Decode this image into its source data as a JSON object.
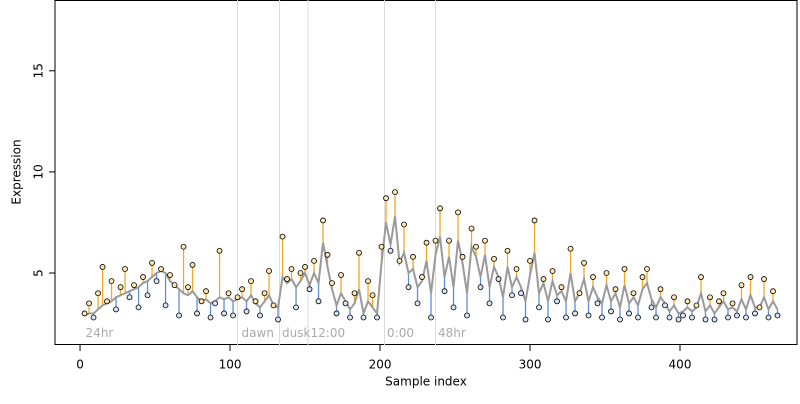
{
  "chart_data": {
    "type": "residual-scatter",
    "xlabel": "Sample index",
    "ylabel": "Expression",
    "xlim": [
      -16.7,
      478
    ],
    "ylim": [
      1.44,
      18.5
    ],
    "xticks": [
      0,
      100,
      200,
      300,
      400
    ],
    "yticks": [
      5,
      10,
      15
    ],
    "above_color": "#f5a623",
    "below_color": "#5b8fd9",
    "fit_color": "#9a9a9a",
    "point_above_fill": "#ffe6b0",
    "point_below_fill": "#d8e6f7",
    "vlines": [
      105,
      133,
      152,
      203,
      237
    ],
    "annotations": [
      {
        "text": "24hr",
        "x": 3,
        "y": 2
      },
      {
        "text": "dawn",
        "x": 107,
        "y": 2
      },
      {
        "text": "dusk",
        "x": 134,
        "y": 2
      },
      {
        "text": "12:00",
        "x": 153,
        "y": 2
      },
      {
        "text": "0:00",
        "x": 204,
        "y": 2
      },
      {
        "text": "48hr",
        "x": 238,
        "y": 2
      }
    ],
    "x": [
      3,
      6,
      9,
      12,
      15,
      18,
      21,
      24,
      27,
      30,
      33,
      36,
      39,
      42,
      45,
      48,
      51,
      54,
      57,
      60,
      63,
      66,
      69,
      72,
      75,
      78,
      81,
      84,
      87,
      90,
      93,
      96,
      99,
      102,
      105,
      108,
      111,
      114,
      117,
      120,
      123,
      126,
      129,
      132,
      135,
      138,
      141,
      144,
      147,
      150,
      153,
      156,
      159,
      162,
      165,
      168,
      171,
      174,
      177,
      180,
      183,
      186,
      189,
      192,
      195,
      198,
      201,
      204,
      207,
      210,
      213,
      216,
      219,
      222,
      225,
      228,
      231,
      234,
      237,
      240,
      243,
      246,
      249,
      252,
      255,
      258,
      261,
      264,
      267,
      270,
      273,
      276,
      279,
      282,
      285,
      288,
      291,
      294,
      297,
      300,
      303,
      306,
      309,
      312,
      315,
      318,
      321,
      324,
      327,
      330,
      333,
      336,
      339,
      342,
      345,
      348,
      351,
      354,
      357,
      360,
      363,
      366,
      369,
      372,
      375,
      378,
      381,
      384,
      387,
      390,
      393,
      396,
      399,
      402,
      405,
      408,
      411,
      414,
      417,
      420,
      423,
      426,
      429,
      432,
      435,
      438,
      441,
      444,
      447,
      450,
      453,
      456,
      459,
      462,
      465
    ],
    "values": [
      3.0,
      3.5,
      2.8,
      4.0,
      5.3,
      3.6,
      4.6,
      3.2,
      4.3,
      5.2,
      3.8,
      4.4,
      3.3,
      4.8,
      3.9,
      5.5,
      4.6,
      5.2,
      3.4,
      4.9,
      4.4,
      2.9,
      6.3,
      4.3,
      5.4,
      3.0,
      3.6,
      4.1,
      2.8,
      3.5,
      6.1,
      3.0,
      4.0,
      2.9,
      3.8,
      4.2,
      3.1,
      4.6,
      3.6,
      2.9,
      4.0,
      5.1,
      3.4,
      2.7,
      6.8,
      4.7,
      5.2,
      3.3,
      5.0,
      5.3,
      4.2,
      5.6,
      3.6,
      7.6,
      5.9,
      4.5,
      3.0,
      4.9,
      3.5,
      2.8,
      4.0,
      6.0,
      2.8,
      4.6,
      3.9,
      2.8,
      6.3,
      8.7,
      6.1,
      9.0,
      5.6,
      7.4,
      4.3,
      5.8,
      3.5,
      4.8,
      6.5,
      2.8,
      6.6,
      8.2,
      4.1,
      6.6,
      3.3,
      8.0,
      5.8,
      2.9,
      7.2,
      6.3,
      4.3,
      6.6,
      3.5,
      5.7,
      4.7,
      2.8,
      6.1,
      3.9,
      5.2,
      4.0,
      2.7,
      5.6,
      7.6,
      3.3,
      4.7,
      2.7,
      5.1,
      3.6,
      4.3,
      2.8,
      6.2,
      3.0,
      4.0,
      5.5,
      2.9,
      4.8,
      3.5,
      2.8,
      5.0,
      3.1,
      4.2,
      2.7,
      5.2,
      3.0,
      4.0,
      2.8,
      4.8,
      5.2,
      3.3,
      2.8,
      4.2,
      3.4,
      2.8,
      3.8,
      2.7,
      2.9,
      3.6,
      2.8,
      3.4,
      4.8,
      2.7,
      3.8,
      2.7,
      3.6,
      4.0,
      2.8,
      3.5,
      2.9,
      4.4,
      2.8,
      4.8,
      3.0,
      3.3,
      4.7,
      2.8,
      4.1,
      2.9
    ],
    "fitted": [
      2.9,
      3.0,
      3.0,
      3.2,
      3.4,
      3.5,
      3.6,
      3.8,
      3.9,
      4.0,
      4.1,
      4.2,
      4.3,
      4.5,
      4.6,
      4.8,
      5.0,
      5.1,
      5.0,
      4.6,
      4.4,
      4.2,
      4.0,
      3.9,
      4.1,
      3.8,
      3.6,
      3.7,
      3.5,
      3.6,
      3.8,
      3.7,
      3.8,
      3.6,
      3.7,
      3.8,
      3.6,
      3.9,
      3.5,
      3.3,
      3.6,
      3.9,
      3.4,
      3.3,
      4.8,
      4.5,
      4.7,
      4.3,
      4.6,
      5.0,
      4.4,
      5.0,
      4.5,
      6.5,
      5.3,
      4.2,
      3.4,
      4.0,
      3.6,
      3.2,
      3.5,
      4.2,
      3.0,
      3.6,
      3.3,
      3.0,
      5.5,
      7.5,
      6.4,
      7.8,
      5.5,
      6.0,
      5.0,
      5.2,
      4.3,
      4.6,
      5.6,
      4.0,
      5.9,
      6.8,
      4.8,
      5.8,
      4.3,
      6.6,
      5.5,
      4.0,
      6.3,
      5.8,
      4.8,
      5.9,
      4.3,
      5.3,
      4.8,
      3.8,
      5.3,
      4.3,
      4.8,
      4.3,
      3.6,
      4.9,
      6.0,
      4.0,
      4.5,
      3.6,
      4.6,
      3.9,
      4.1,
      3.6,
      5.0,
      3.6,
      4.0,
      4.7,
      3.6,
      4.3,
      3.8,
      3.5,
      4.4,
      3.6,
      4.0,
      3.3,
      4.4,
      3.5,
      3.8,
      3.4,
      4.2,
      4.5,
      3.7,
      3.3,
      3.8,
      3.5,
      3.1,
      3.4,
      3.0,
      3.1,
      3.3,
      3.1,
      3.3,
      4.0,
      3.1,
      3.4,
      3.0,
      3.3,
      3.6,
      3.2,
      3.3,
      3.1,
      3.7,
      3.2,
      3.9,
      3.3,
      3.3,
      3.8,
      3.2,
      3.6,
      3.2
    ]
  }
}
